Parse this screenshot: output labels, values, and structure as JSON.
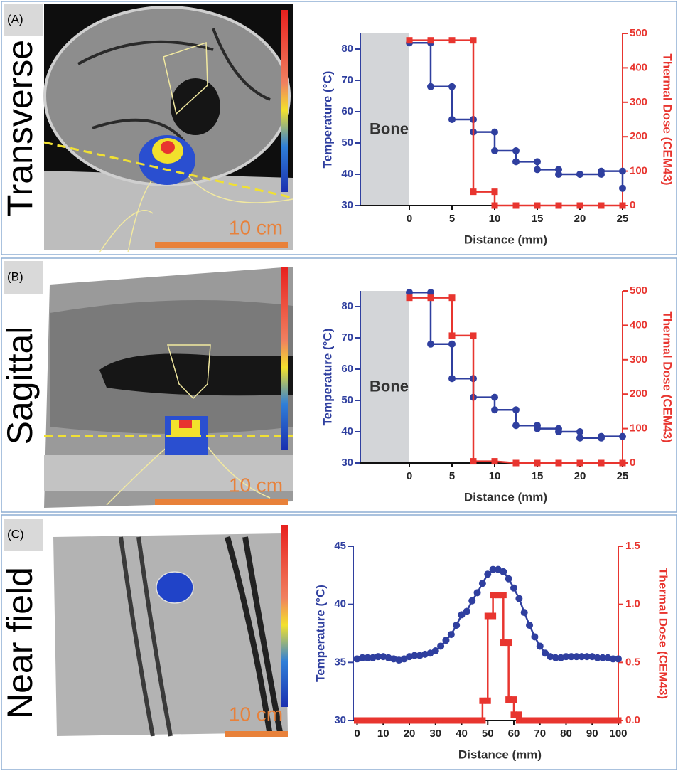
{
  "chart_data": [
    {
      "type": "line",
      "panel_label": "(A)",
      "view_label": "Transverse",
      "scale_label": "10 cm",
      "annotation": "Bone",
      "shaded_region": [
        -5.75,
        0
      ],
      "xlabel": "Distance (mm)",
      "ylabel": "Temperature (°C)",
      "y2label": "Thermal Dose (CEM43)",
      "xlim": [
        -5.75,
        25
      ],
      "xticks": [
        0,
        5,
        10,
        15,
        20,
        25
      ],
      "ylim": [
        30,
        85
      ],
      "yticks": [
        30,
        40,
        50,
        60,
        70,
        80
      ],
      "y2lim": [
        0,
        500
      ],
      "y2ticks": [
        0,
        100,
        200,
        300,
        400,
        500
      ],
      "series": [
        {
          "color": "#2f3f9f",
          "x": [
            0,
            2.5,
            2.5,
            5,
            5,
            7.5,
            7.5,
            10,
            10,
            12.5,
            12.5,
            15,
            15,
            17.5,
            17.5,
            20,
            20,
            22.5,
            22.5,
            25,
            25
          ],
          "values": [
            82,
            82,
            68,
            68,
            57.5,
            57.5,
            53.5,
            53.5,
            47.5,
            47.5,
            44,
            44,
            41.5,
            41.5,
            40,
            40,
            40,
            40,
            41,
            41,
            35.5
          ]
        },
        {
          "color": "#e8352f",
          "axis": "y2",
          "x": [
            0,
            2.5,
            5,
            7.5,
            7.5,
            10,
            10,
            12.5,
            15,
            17.5,
            20,
            22.5,
            25
          ],
          "values": [
            480,
            480,
            480,
            480,
            40,
            40,
            0,
            0,
            0,
            0,
            0,
            0,
            0
          ]
        }
      ]
    },
    {
      "type": "line",
      "panel_label": "(B)",
      "view_label": "Sagittal",
      "scale_label": "10 cm",
      "annotation": "Bone",
      "shaded_region": [
        -5.75,
        0
      ],
      "xlabel": "Distance (mm)",
      "ylabel": "Temperature (°C)",
      "y2label": "Thermal Dose (CEM43)",
      "xlim": [
        -5.75,
        25
      ],
      "xticks": [
        0,
        5,
        10,
        15,
        20,
        25
      ],
      "ylim": [
        30,
        85
      ],
      "yticks": [
        30,
        40,
        50,
        60,
        70,
        80
      ],
      "y2lim": [
        0,
        500
      ],
      "y2ticks": [
        0,
        100,
        200,
        300,
        400,
        500
      ],
      "series": [
        {
          "color": "#2f3f9f",
          "x": [
            0,
            2.5,
            2.5,
            5,
            5,
            7.5,
            7.5,
            10,
            10,
            12.5,
            12.5,
            15,
            15,
            17.5,
            17.5,
            20,
            20,
            22.5,
            22.5,
            25
          ],
          "values": [
            84.5,
            84.5,
            68,
            68,
            57,
            57,
            51,
            51,
            47,
            47,
            42,
            42,
            41,
            41,
            40,
            40,
            38,
            38,
            38.5,
            38.5
          ]
        },
        {
          "color": "#e8352f",
          "axis": "y2",
          "x": [
            0,
            2.5,
            5,
            5,
            7.5,
            7.5,
            10,
            12.5,
            15,
            17.5,
            20,
            22.5,
            25
          ],
          "values": [
            480,
            480,
            480,
            370,
            370,
            5,
            5,
            0,
            0,
            0,
            0,
            0,
            0
          ]
        }
      ]
    },
    {
      "type": "line",
      "panel_label": "(C)",
      "view_label": "Near field",
      "scale_label": "10 cm",
      "xlabel": "Distance (mm)",
      "ylabel": "Temperature (°C)",
      "y2label": "Thermal Dose (CEM43)",
      "xlim": [
        -1.5,
        100
      ],
      "xticks": [
        0,
        10,
        20,
        30,
        40,
        50,
        60,
        70,
        80,
        90,
        100
      ],
      "ylim": [
        30,
        45
      ],
      "yticks": [
        30,
        35,
        40,
        45
      ],
      "y2lim": [
        0,
        1.5
      ],
      "y2ticks": [
        {
          "value": 0,
          "label": "0.0"
        },
        0.5,
        {
          "value": 1,
          "label": "1.0"
        },
        1.5
      ],
      "series": [
        {
          "color": "#2f3f9f",
          "x": [
            0,
            2,
            4,
            6,
            8,
            10,
            12,
            14,
            16,
            18,
            20,
            22,
            24,
            26,
            28,
            30,
            32,
            34,
            36,
            38,
            40,
            42,
            44,
            46,
            48,
            50,
            52,
            54,
            56,
            58,
            60,
            62,
            64,
            66,
            68,
            70,
            72,
            74,
            76,
            78,
            80,
            82,
            84,
            86,
            88,
            90,
            92,
            94,
            96,
            98,
            100
          ],
          "values": [
            35.3,
            35.4,
            35.4,
            35.4,
            35.5,
            35.5,
            35.4,
            35.3,
            35.2,
            35.3,
            35.5,
            35.6,
            35.6,
            35.7,
            35.8,
            36.0,
            36.4,
            36.9,
            37.4,
            38.2,
            39.1,
            39.4,
            40.3,
            41.0,
            41.8,
            42.6,
            43.0,
            43.0,
            42.8,
            42.2,
            41.4,
            40.5,
            39.3,
            38.2,
            37.2,
            36.4,
            35.8,
            35.5,
            35.4,
            35.4,
            35.5,
            35.5,
            35.5,
            35.5,
            35.5,
            35.5,
            35.4,
            35.4,
            35.4,
            35.3,
            35.3
          ]
        },
        {
          "color": "#e8352f",
          "axis": "y2",
          "x": [
            0,
            2,
            4,
            6,
            8,
            10,
            12,
            14,
            16,
            18,
            20,
            22,
            24,
            26,
            28,
            30,
            32,
            34,
            36,
            38,
            40,
            42,
            44,
            46,
            48,
            48,
            50,
            50,
            52,
            52,
            54,
            54,
            56,
            56,
            58,
            58,
            60,
            60,
            62,
            62,
            64,
            66,
            68,
            70,
            72,
            74,
            76,
            78,
            80,
            82,
            84,
            86,
            88,
            90,
            92,
            94,
            96,
            98,
            100
          ],
          "values": [
            0,
            0,
            0,
            0,
            0,
            0,
            0,
            0,
            0,
            0,
            0,
            0,
            0,
            0,
            0,
            0,
            0,
            0,
            0,
            0,
            0,
            0,
            0,
            0,
            0,
            0.17,
            0.17,
            0.9,
            0.9,
            1.08,
            1.08,
            1.08,
            1.08,
            0.67,
            0.67,
            0.18,
            0.18,
            0.05,
            0.05,
            0,
            0,
            0,
            0,
            0,
            0,
            0,
            0,
            0,
            0,
            0,
            0,
            0,
            0,
            0,
            0,
            0,
            0,
            0,
            0
          ]
        }
      ]
    }
  ]
}
